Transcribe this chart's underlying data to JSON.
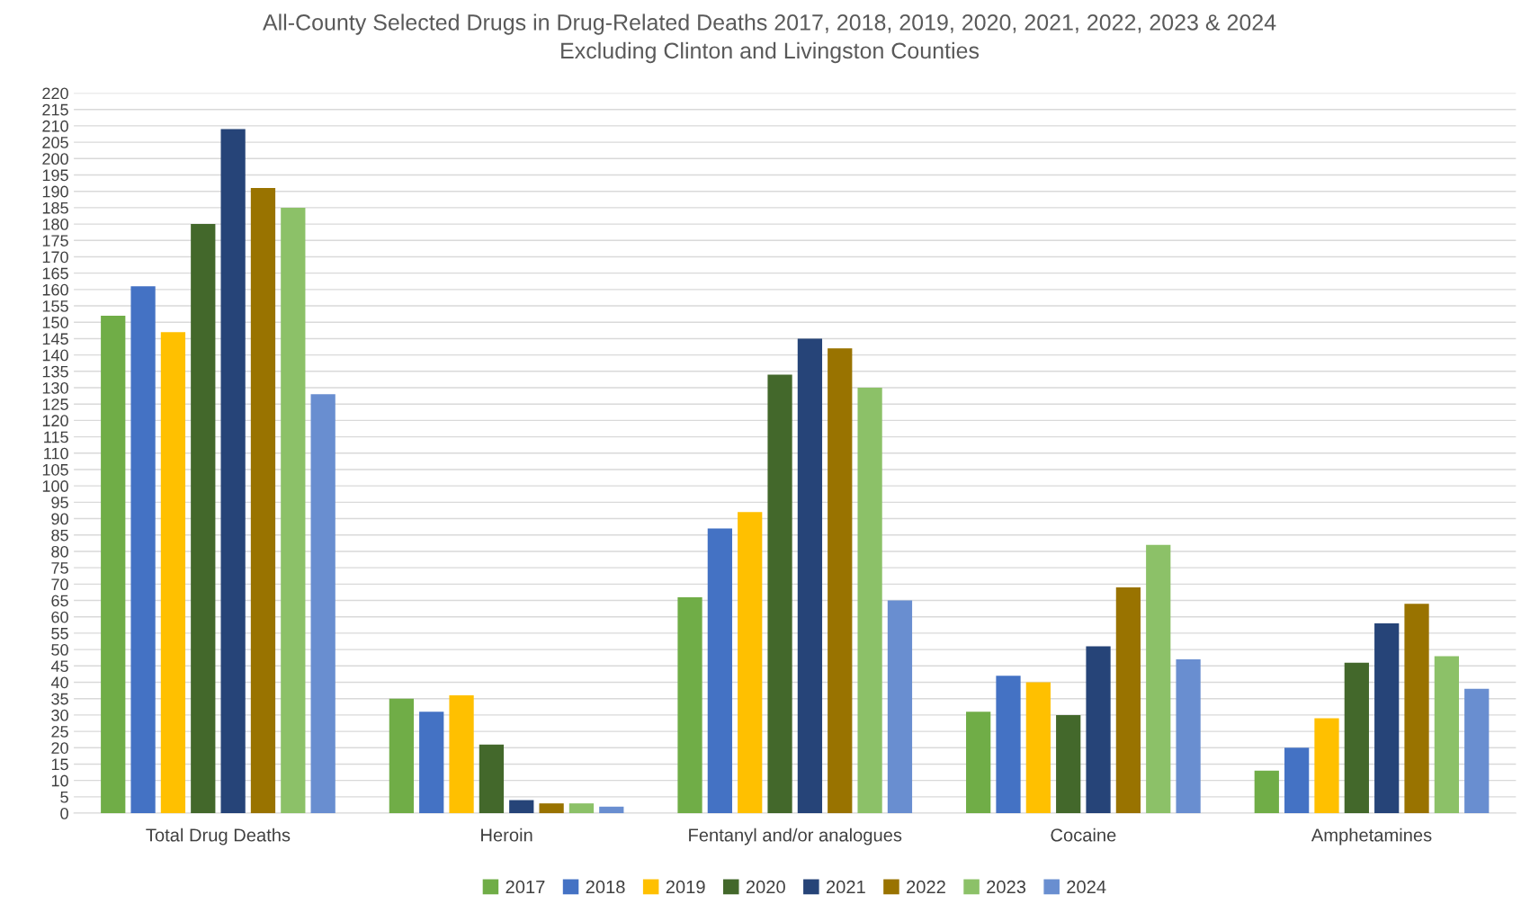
{
  "chart_data": {
    "type": "bar",
    "title": "All-County Selected Drugs in Drug-Related Deaths 2017, 2018, 2019, 2020, 2021, 2022, 2023 & 2024\nExcluding Clinton and Livingston Counties",
    "categories": [
      "Total Drug Deaths",
      "Heroin",
      "Fentanyl and/or analogues",
      "Cocaine",
      "Amphetamines"
    ],
    "series": [
      {
        "name": "2017",
        "color": "#70ad47",
        "values": [
          152,
          35,
          66,
          31,
          13
        ]
      },
      {
        "name": "2018",
        "color": "#4472c4",
        "values": [
          161,
          31,
          87,
          42,
          20
        ]
      },
      {
        "name": "2019",
        "color": "#ffc000",
        "values": [
          147,
          36,
          92,
          40,
          29
        ]
      },
      {
        "name": "2020",
        "color": "#43682b",
        "values": [
          180,
          21,
          134,
          30,
          46
        ]
      },
      {
        "name": "2021",
        "color": "#264478",
        "values": [
          209,
          4,
          145,
          51,
          58
        ]
      },
      {
        "name": "2022",
        "color": "#997300",
        "values": [
          191,
          3,
          142,
          69,
          64
        ]
      },
      {
        "name": "2023",
        "color": "#8cc168",
        "values": [
          185,
          3,
          130,
          82,
          48
        ]
      },
      {
        "name": "2024",
        "color": "#698ed0",
        "values": [
          128,
          2,
          65,
          47,
          38
        ]
      }
    ],
    "ylim": [
      0,
      220
    ],
    "yticks": [
      0,
      5,
      10,
      15,
      20,
      25,
      30,
      35,
      40,
      45,
      50,
      55,
      60,
      65,
      70,
      75,
      80,
      85,
      90,
      95,
      100,
      105,
      110,
      115,
      120,
      125,
      130,
      135,
      140,
      145,
      150,
      155,
      160,
      165,
      170,
      175,
      180,
      185,
      190,
      195,
      200,
      205,
      210,
      215,
      220
    ],
    "grid": "y",
    "legend": "bottom"
  }
}
